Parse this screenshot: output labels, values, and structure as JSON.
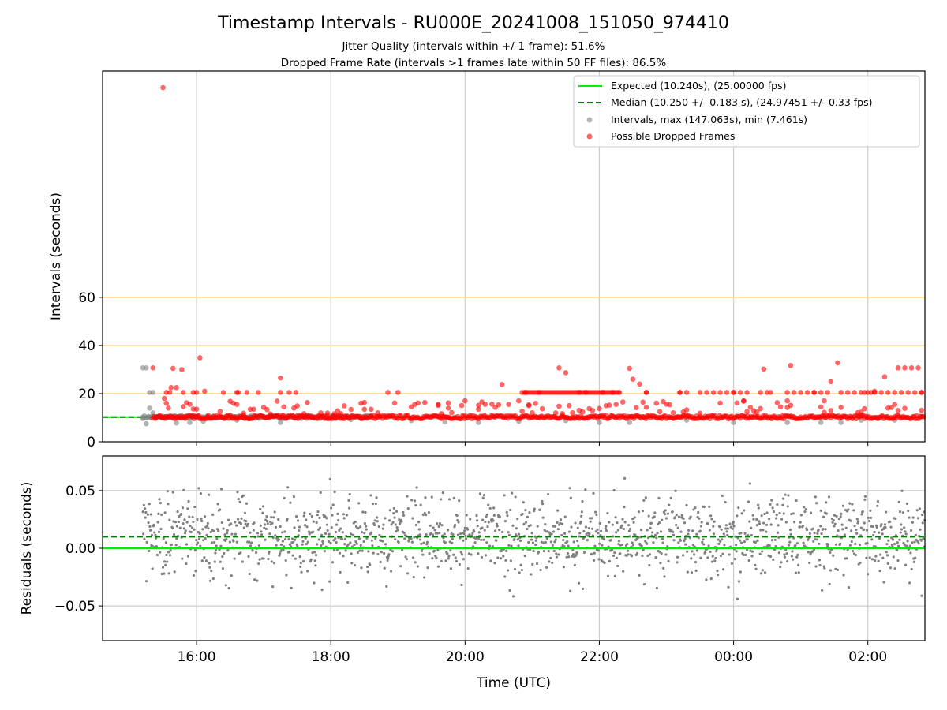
{
  "title": "Timestamp Intervals - RU000E_20241008_151050_974410",
  "subtitle_jitter": "Jitter Quality (intervals within +/-1 frame): 51.6%",
  "subtitle_dropped": "Dropped Frame Rate (intervals >1 frames late within 50 FF files): 86.5%",
  "colors": {
    "expected": "#00ee00",
    "median": "#007f00",
    "intervals": "#808080",
    "dropped": "#ff0000",
    "threshold_lines": "#ffd27a",
    "grid": "#cccccc"
  },
  "chart_data": [
    {
      "type": "scatter",
      "panel": "intervals",
      "ylabel": "Intervals (seconds)",
      "x_ticks": [
        "16:00",
        "18:00",
        "20:00",
        "22:00",
        "00:00",
        "02:00"
      ],
      "x_tick_hours": [
        16,
        18,
        20,
        22,
        24,
        26
      ],
      "xlim_hours": [
        14.6,
        26.85
      ],
      "y_ticks": [
        0,
        20,
        40,
        60
      ],
      "ylim": [
        0,
        154
      ],
      "threshold_lines": [
        20,
        40,
        60
      ],
      "legend_position": "top-right",
      "series": [
        {
          "name": "Expected (10.240s), (25.00000 fps)",
          "kind": "line",
          "value": 10.24
        },
        {
          "name": "Median (10.250 +/- 0.183 s), (24.97451 +/- 0.33 fps)",
          "kind": "dashed-line",
          "value": 10.25
        },
        {
          "name": "Intervals, max (147.063s), min (7.461s)",
          "kind": "points",
          "max": 147.063,
          "min": 7.461,
          "points": [
            [
              15.2,
              30.7
            ],
            [
              15.25,
              30.7
            ],
            [
              15.3,
              20.5
            ],
            [
              15.35,
              20.5
            ],
            [
              15.2,
              10.2
            ],
            [
              15.25,
              7.5
            ],
            [
              15.3,
              14.0
            ],
            [
              15.35,
              12.0
            ],
            [
              15.7,
              7.8
            ],
            [
              15.9,
              8.0
            ],
            [
              16.1,
              8.5
            ],
            [
              16.6,
              9.0
            ],
            [
              17.1,
              11.0
            ],
            [
              17.25,
              8.0
            ],
            [
              17.8,
              9.5
            ],
            [
              18.2,
              10.0
            ],
            [
              18.3,
              9.2
            ],
            [
              19.2,
              8.8
            ],
            [
              19.7,
              8.2
            ],
            [
              20.2,
              8.0
            ],
            [
              20.8,
              8.5
            ],
            [
              21.5,
              8.8
            ],
            [
              22.0,
              8.0
            ],
            [
              22.45,
              8.0
            ],
            [
              23.3,
              9.0
            ],
            [
              24.0,
              8.0
            ],
            [
              24.8,
              8.0
            ],
            [
              25.3,
              8.0
            ],
            [
              25.6,
              8.0
            ],
            [
              25.9,
              9.0
            ],
            [
              26.4,
              9.0
            ]
          ]
        },
        {
          "name": "Possible Dropped Frames",
          "kind": "points",
          "points": [
            [
              15.5,
              147.1
            ],
            [
              15.35,
              30.7
            ],
            [
              15.55,
              20.5
            ],
            [
              15.6,
              20.5
            ],
            [
              15.62,
              22.5
            ],
            [
              15.7,
              22.5
            ],
            [
              15.65,
              30.5
            ],
            [
              15.78,
              30.0
            ],
            [
              15.8,
              20.5
            ],
            [
              15.52,
              18.0
            ],
            [
              15.55,
              16.0
            ],
            [
              15.58,
              14.0
            ],
            [
              15.95,
              20.5
            ],
            [
              16.0,
              20.5
            ],
            [
              16.05,
              34.9
            ],
            [
              16.12,
              21.0
            ],
            [
              16.4,
              20.5
            ],
            [
              16.6,
              20.5
            ],
            [
              16.62,
              20.5
            ],
            [
              16.75,
              20.5
            ],
            [
              16.8,
              13.5
            ],
            [
              16.85,
              13.5
            ],
            [
              16.92,
              20.5
            ],
            [
              17.25,
              26.5
            ],
            [
              17.25,
              20.5
            ],
            [
              17.38,
              20.5
            ],
            [
              17.48,
              20.5
            ],
            [
              17.3,
              14.5
            ],
            [
              17.45,
              14.0
            ],
            [
              18.5,
              13.5
            ],
            [
              18.6,
              13.5
            ],
            [
              18.7,
              12.0
            ],
            [
              18.85,
              20.5
            ],
            [
              19.0,
              20.5
            ],
            [
              19.2,
              14.5
            ],
            [
              19.6,
              15.5
            ],
            [
              19.75,
              14.0
            ],
            [
              20.0,
              17.0
            ],
            [
              20.2,
              13.5
            ],
            [
              20.55,
              23.8
            ],
            [
              20.9,
              20.5
            ],
            [
              20.8,
              17.0
            ],
            [
              20.95,
              15.0
            ],
            [
              21.1,
              20.5
            ],
            [
              21.4,
              30.7
            ],
            [
              21.5,
              28.7
            ],
            [
              21.7,
              20.5
            ],
            [
              21.35,
              12.0
            ],
            [
              21.55,
              15.0
            ],
            [
              21.8,
              20.5
            ],
            [
              22.05,
              20.5
            ],
            [
              22.2,
              20.5
            ],
            [
              22.35,
              16.5
            ],
            [
              22.45,
              30.5
            ],
            [
              22.5,
              26.0
            ],
            [
              22.6,
              24.0
            ],
            [
              22.7,
              20.5
            ],
            [
              22.9,
              12.5
            ],
            [
              23.2,
              20.5
            ],
            [
              23.7,
              20.5
            ],
            [
              24.0,
              20.5
            ],
            [
              24.15,
              17.0
            ],
            [
              24.45,
              30.2
            ],
            [
              24.55,
              20.5
            ],
            [
              24.7,
              14.5
            ],
            [
              24.8,
              17.0
            ],
            [
              24.85,
              31.7
            ],
            [
              25.2,
              20.5
            ],
            [
              25.35,
              17.0
            ],
            [
              25.6,
              20.5
            ],
            [
              25.55,
              32.8
            ],
            [
              25.45,
              25.0
            ],
            [
              25.95,
              20.5
            ],
            [
              26.05,
              20.5
            ],
            [
              26.25,
              27.0
            ],
            [
              26.1,
              21.0
            ],
            [
              26.4,
              15.5
            ],
            [
              26.45,
              13.0
            ],
            [
              26.5,
              20.5
            ],
            [
              26.7,
              20.5
            ],
            [
              26.8,
              20.5
            ],
            [
              26.45,
              30.7
            ],
            [
              26.55,
              30.7
            ],
            [
              26.65,
              30.7
            ],
            [
              26.75,
              30.7
            ]
          ]
        }
      ]
    },
    {
      "type": "scatter",
      "panel": "residuals",
      "xlabel": "Time (UTC)",
      "ylabel": "Residuals (seconds)",
      "x_ticks": [
        "16:00",
        "18:00",
        "20:00",
        "22:00",
        "00:00",
        "02:00"
      ],
      "x_tick_hours": [
        16,
        18,
        20,
        22,
        24,
        26
      ],
      "xlim_hours": [
        14.6,
        26.85
      ],
      "y_ticks": [
        "0.05",
        "0.00",
        "−0.05"
      ],
      "y_tick_values": [
        0.05,
        0.0,
        -0.05
      ],
      "ylim": [
        -0.08,
        0.08
      ],
      "expected_residual": 0.0,
      "median_residual": 0.01,
      "residual_spread": 0.045,
      "x_start_hours": 15.2
    }
  ]
}
